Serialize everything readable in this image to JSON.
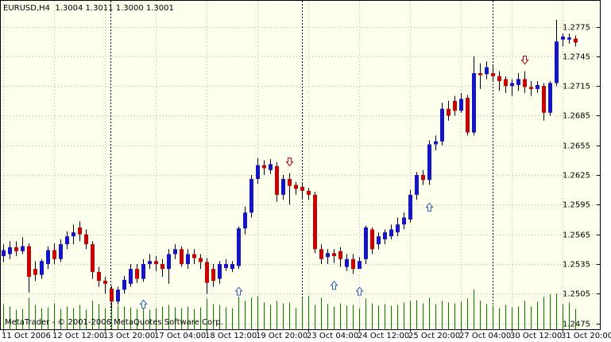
{
  "chart_data": {
    "type": "candlestick",
    "title": "EURUSD,H4  1.3004 1.3011 1.3000 1.3001",
    "footer": "MetaTrader - © 2001-2006 MetaQuotes Software Corp.",
    "up_color": "#1414c8",
    "down_color": "#c80000",
    "volume_color": "#008000",
    "grid": true,
    "ylim": [
      1.2469,
      1.2802
    ],
    "yticks": [
      1.2775,
      1.2745,
      1.2715,
      1.2685,
      1.2655,
      1.2625,
      1.2595,
      1.2565,
      1.2535,
      1.2505,
      1.2475
    ],
    "categories": [
      "11 Oct 2006",
      null,
      null,
      null,
      null,
      null,
      null,
      null,
      "12 Oct 12:00",
      null,
      null,
      null,
      null,
      null,
      null,
      null,
      "13 Oct 20:00",
      null,
      null,
      null,
      null,
      null,
      null,
      null,
      "17 Oct 04:00",
      null,
      null,
      null,
      null,
      null,
      null,
      null,
      "18 Oct 12:00",
      null,
      null,
      null,
      null,
      null,
      null,
      null,
      "19 Oct 20:00",
      null,
      null,
      null,
      null,
      null,
      null,
      null,
      "23 Oct 04:00",
      null,
      null,
      null,
      null,
      null,
      null,
      null,
      "24 Oct 12:00",
      null,
      null,
      null,
      null,
      null,
      null,
      null,
      "25 Oct 20:00",
      null,
      null,
      null,
      null,
      null,
      null,
      null,
      "27 Oct 04:00",
      null,
      null,
      null,
      null,
      null,
      null,
      null,
      "30 Oct 12:00",
      null,
      null,
      null,
      null,
      null,
      null,
      null,
      "31 Oct 20:00",
      null,
      null
    ],
    "open": [
      1.2543,
      1.2545,
      1.2552,
      1.2548,
      1.2553,
      1.253,
      1.2524,
      1.2535,
      1.2549,
      1.254,
      1.2555,
      1.2563,
      1.2572,
      1.2565,
      1.2555,
      1.2527,
      1.2518,
      1.251,
      1.2497,
      1.2509,
      1.2515,
      1.253,
      1.252,
      1.2535,
      1.2538,
      1.2535,
      1.253,
      1.2545,
      1.255,
      1.2535,
      1.2545,
      1.2541,
      1.2537,
      1.253,
      1.252,
      1.2531,
      1.253,
      1.2533,
      1.2571,
      1.2587,
      1.2621,
      1.2635,
      1.263,
      1.2634,
      1.2605,
      1.2621,
      1.2615,
      1.2613,
      1.2609,
      1.2605,
      1.255,
      1.2542,
      1.2546,
      1.2548,
      1.2532,
      1.254,
      1.253,
      1.254,
      1.257,
      1.2555,
      1.256,
      1.2563,
      1.2567,
      1.2575,
      1.258,
      1.2605,
      1.2625,
      1.262,
      1.2656,
      1.2659,
      1.2692,
      1.27,
      1.269,
      1.2703,
      1.2668,
      1.2728,
      1.2727,
      1.2728,
      1.2725,
      1.2722,
      1.2715,
      1.2716,
      1.2722,
      1.2714,
      1.2712,
      1.2715,
      1.2688,
      1.2718,
      1.2762,
      1.2762,
      1.2763
    ],
    "high": [
      1.2555,
      1.2558,
      1.2558,
      1.2562,
      1.2556,
      1.2538,
      1.254,
      1.2553,
      1.2556,
      1.256,
      1.2568,
      1.2575,
      1.2578,
      1.257,
      1.2558,
      1.2532,
      1.2522,
      1.2513,
      1.2512,
      1.2523,
      1.2535,
      1.2535,
      1.254,
      1.2545,
      1.2543,
      1.254,
      1.255,
      1.2555,
      1.2553,
      1.255,
      1.255,
      1.2545,
      1.2541,
      1.2535,
      1.2538,
      1.254,
      1.2538,
      1.2573,
      1.2593,
      1.2625,
      1.2642,
      1.264,
      1.2641,
      1.2638,
      1.2625,
      1.2627,
      1.2618,
      1.2617,
      1.2612,
      1.2608,
      1.2555,
      1.255,
      1.255,
      1.2552,
      1.2545,
      1.2545,
      1.2542,
      1.2574,
      1.2572,
      1.2567,
      1.257,
      1.2575,
      1.2582,
      1.2587,
      1.261,
      1.2628,
      1.263,
      1.266,
      1.2665,
      1.2698,
      1.27,
      1.2705,
      1.2708,
      1.2706,
      1.2745,
      1.2738,
      1.274,
      1.2735,
      1.273,
      1.2725,
      1.2722,
      1.2728,
      1.273,
      1.272,
      1.272,
      1.2718,
      1.272,
      1.2782,
      1.2768,
      1.2768,
      1.2766
    ],
    "low": [
      1.2537,
      1.254,
      1.2543,
      1.2545,
      1.2506,
      1.2518,
      1.252,
      1.253,
      1.2535,
      1.2537,
      1.255,
      1.2555,
      1.2558,
      1.255,
      1.252,
      1.2512,
      1.2505,
      1.249,
      1.2494,
      1.2505,
      1.2512,
      1.2516,
      1.2517,
      1.253,
      1.2528,
      1.2522,
      1.2515,
      1.254,
      1.2532,
      1.253,
      1.2535,
      1.253,
      1.2505,
      1.2512,
      1.2515,
      1.2528,
      1.2527,
      1.253,
      1.2565,
      1.2582,
      1.2616,
      1.2625,
      1.2626,
      1.2598,
      1.26,
      1.2595,
      1.2605,
      1.26,
      1.26,
      1.2546,
      1.2535,
      1.2535,
      1.2536,
      1.2532,
      1.2528,
      1.2525,
      1.253,
      1.2535,
      1.2545,
      1.255,
      1.2555,
      1.256,
      1.2563,
      1.257,
      1.2577,
      1.26,
      1.2615,
      1.2615,
      1.265,
      1.2655,
      1.268,
      1.2685,
      1.2688,
      1.2665,
      1.2665,
      1.2712,
      1.2722,
      1.272,
      1.271,
      1.2708,
      1.2705,
      1.271,
      1.2708,
      1.2705,
      1.2708,
      1.268,
      1.2685,
      1.2715,
      1.2755,
      1.2758,
      1.2755
    ],
    "close": [
      1.2549,
      1.2552,
      1.2548,
      1.2553,
      1.2522,
      1.2524,
      1.2538,
      1.2549,
      1.254,
      1.2555,
      1.2563,
      1.2567,
      1.2565,
      1.2555,
      1.2527,
      1.2518,
      1.2515,
      1.2497,
      1.2509,
      1.2519,
      1.253,
      1.252,
      1.2535,
      1.2538,
      1.2535,
      1.253,
      1.2545,
      1.255,
      1.2535,
      1.2545,
      1.2541,
      1.2537,
      1.2516,
      1.2518,
      1.2535,
      1.2535,
      1.2535,
      1.2571,
      1.2587,
      1.2621,
      1.2635,
      1.2632,
      1.2636,
      1.2605,
      1.2621,
      1.2614,
      1.2611,
      1.2609,
      1.2605,
      1.255,
      1.254,
      1.2546,
      1.2543,
      1.254,
      1.254,
      1.253,
      1.2538,
      1.2572,
      1.255,
      1.2563,
      1.2567,
      1.257,
      1.2575,
      1.2582,
      1.2605,
      1.2625,
      1.262,
      1.2656,
      1.2659,
      1.2692,
      1.2685,
      1.269,
      1.2702,
      1.2668,
      1.2728,
      1.2726,
      1.2734,
      1.2725,
      1.272,
      1.2715,
      1.2718,
      1.2722,
      1.2714,
      1.2712,
      1.2716,
      1.2688,
      1.2718,
      1.276,
      1.2765,
      1.2764,
      1.2759
    ],
    "volumes": [
      620,
      560,
      480,
      500,
      780,
      600,
      520,
      540,
      640,
      500,
      560,
      520,
      600,
      480,
      700,
      620,
      520,
      680,
      580,
      560,
      540,
      500,
      620,
      480,
      520,
      560,
      600,
      540,
      520,
      560,
      500,
      540,
      760,
      620,
      600,
      540,
      520,
      800,
      700,
      780,
      820,
      660,
      600,
      700,
      640,
      660,
      520,
      760,
      820,
      600,
      780,
      620,
      560,
      640,
      580,
      600,
      520,
      760,
      640,
      580,
      620,
      580,
      600,
      660,
      700,
      720,
      640,
      780,
      620,
      700,
      660,
      640,
      680,
      760,
      980,
      700,
      620,
      580,
      520,
      600,
      540,
      560,
      700,
      560,
      680,
      800,
      860,
      880,
      620,
      660,
      500
    ],
    "fractals_up": [
      22,
      37,
      52,
      56,
      67
    ],
    "fractals_down": [
      45,
      82
    ]
  }
}
